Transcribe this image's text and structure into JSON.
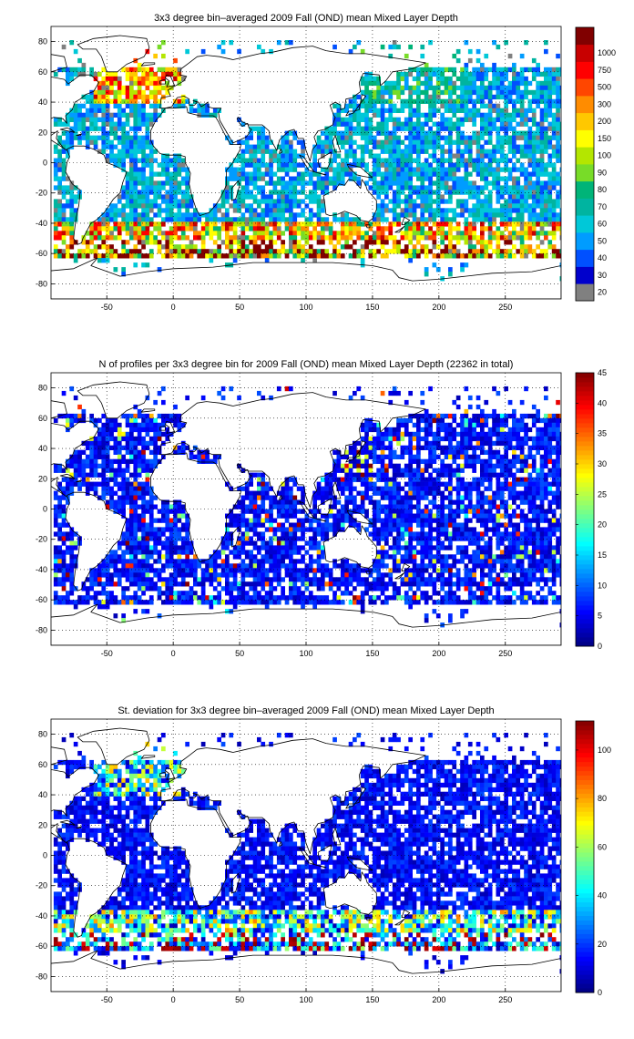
{
  "chart_data": [
    {
      "type": "heatmap",
      "title": "3x3 degree bin–averaged 2009 Fall (OND) mean Mixed Layer Depth",
      "xticks": [
        "-50",
        "0",
        "50",
        "100",
        "150",
        "200",
        "250"
      ],
      "yticks": [
        "80",
        "60",
        "40",
        "20",
        "0",
        "-20",
        "-40",
        "-60",
        "-80"
      ],
      "xlim": [
        -92,
        292
      ],
      "ylim": [
        -90,
        90
      ],
      "grid": true,
      "colorbar": {
        "scale": "categorical",
        "labels": [
          "20",
          "30",
          "40",
          "50",
          "60",
          "70",
          "80",
          "90",
          "100",
          "150",
          "200",
          "300",
          "500",
          "750",
          "1000"
        ],
        "colors": [
          "#808080",
          "#0000cc",
          "#0050ff",
          "#009cff",
          "#00c8d8",
          "#00b4a0",
          "#00b478",
          "#78dc28",
          "#b4e600",
          "#ffff00",
          "#ffc800",
          "#ff8c00",
          "#ff4600",
          "#ff0000",
          "#c80000",
          "#800000"
        ]
      }
    },
    {
      "type": "heatmap",
      "title": "N of profiles per 3x3 degree bin for 2009 Fall (OND) mean Mixed Layer Depth  (22362 in total)",
      "xticks": [
        "-50",
        "0",
        "50",
        "100",
        "150",
        "200",
        "250"
      ],
      "yticks": [
        "80",
        "60",
        "40",
        "20",
        "0",
        "-20",
        "-40",
        "-60",
        "-80"
      ],
      "xlim": [
        -92,
        292
      ],
      "ylim": [
        -90,
        90
      ],
      "grid": true,
      "total_profiles": 22362,
      "colorbar": {
        "scale": "linear",
        "range": [
          0,
          45
        ],
        "labels": [
          "0",
          "5",
          "10",
          "15",
          "20",
          "25",
          "30",
          "35",
          "40",
          "45"
        ]
      }
    },
    {
      "type": "heatmap",
      "title": "St. deviation for 3x3 degree bin–averaged 2009 Fall (OND) mean Mixed Layer Depth",
      "xticks": [
        "-50",
        "0",
        "50",
        "100",
        "150",
        "200",
        "250"
      ],
      "yticks": [
        "80",
        "60",
        "40",
        "20",
        "0",
        "-20",
        "-40",
        "-60",
        "-80"
      ],
      "xlim": [
        -92,
        292
      ],
      "ylim": [
        -90,
        90
      ],
      "grid": true,
      "colorbar": {
        "scale": "linear",
        "range": [
          0,
          112
        ],
        "labels": [
          "0",
          "20",
          "40",
          "60",
          "80",
          "100"
        ]
      }
    }
  ]
}
